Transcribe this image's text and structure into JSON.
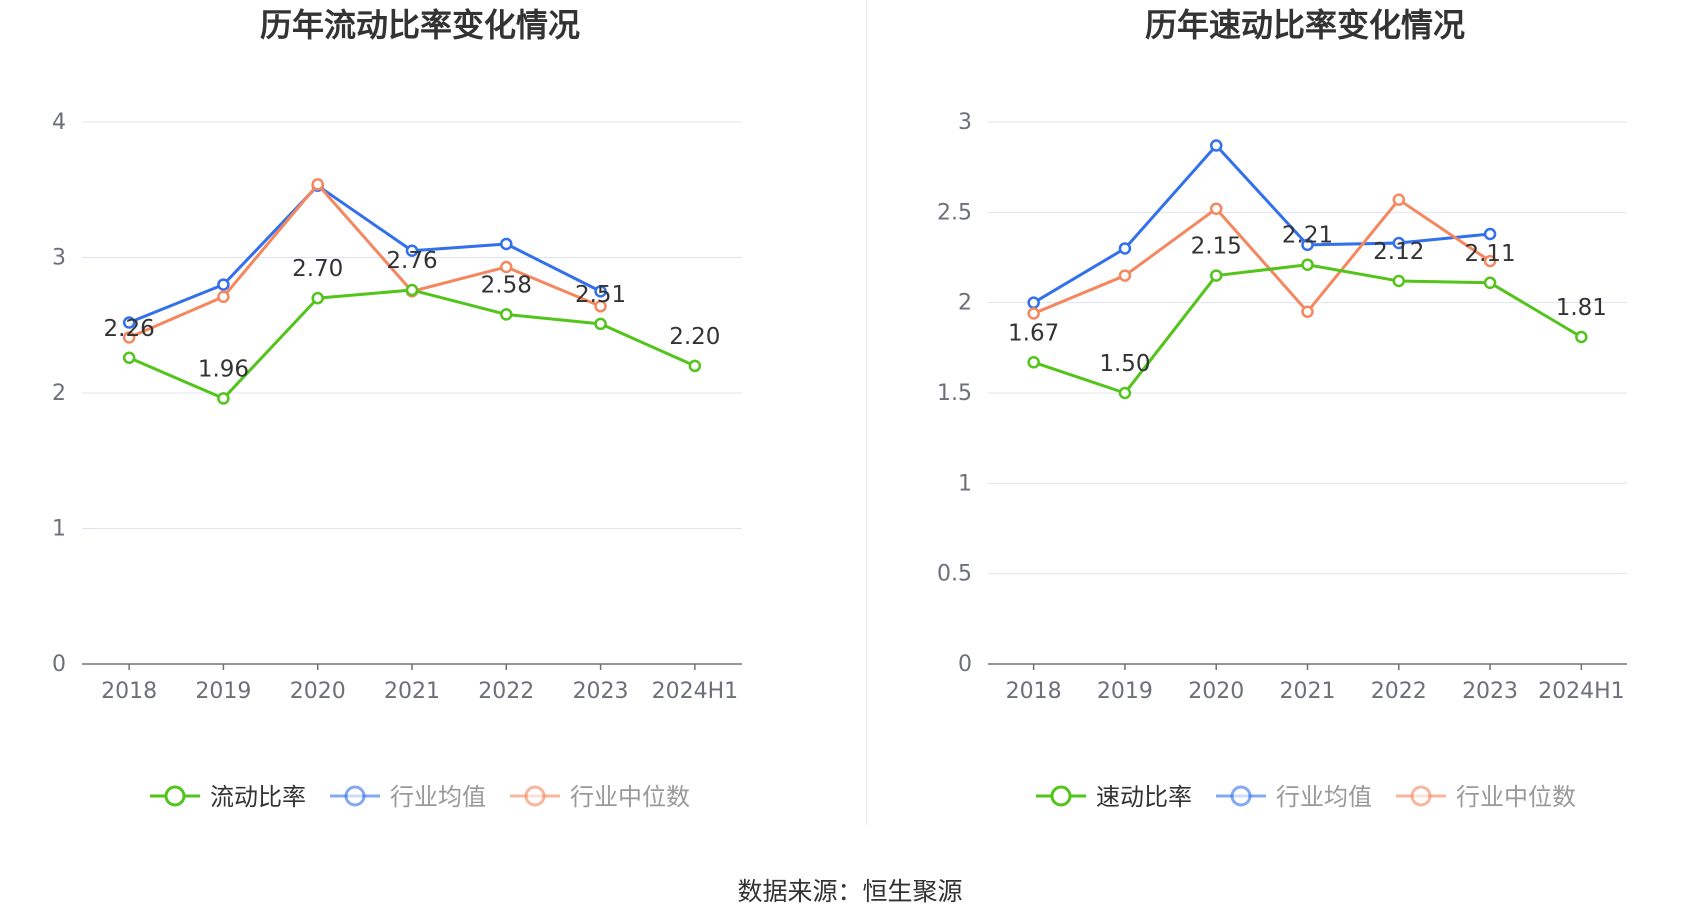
{
  "chart_data": [
    {
      "type": "line",
      "title": "历年流动比率变化情况",
      "categories": [
        "2018",
        "2019",
        "2020",
        "2021",
        "2022",
        "2023",
        "2024H1"
      ],
      "ylim": [
        0,
        4
      ],
      "yticks": [
        "0",
        "1",
        "2",
        "3",
        "4"
      ],
      "ytick_values": [
        0,
        1,
        2,
        3,
        4
      ],
      "grid": true,
      "legend_position": "bottom-center",
      "series": [
        {
          "name": "流动比率",
          "color": "#52c41a",
          "values": [
            2.26,
            1.96,
            2.7,
            2.76,
            2.58,
            2.51,
            2.2
          ],
          "labels": [
            "2.26",
            "1.96",
            "2.70",
            "2.76",
            "2.58",
            "2.51",
            "2.20"
          ]
        },
        {
          "name": "行业均值",
          "color": "#3370eb",
          "values": [
            2.52,
            2.8,
            3.53,
            3.05,
            3.1,
            2.75,
            null
          ]
        },
        {
          "name": "行业中位数",
          "color": "#f5875f",
          "values": [
            2.41,
            2.71,
            3.54,
            2.75,
            2.93,
            2.64,
            null
          ]
        }
      ]
    },
    {
      "type": "line",
      "title": "历年速动比率变化情况",
      "categories": [
        "2018",
        "2019",
        "2020",
        "2021",
        "2022",
        "2023",
        "2024H1"
      ],
      "ylim": [
        0,
        3
      ],
      "yticks": [
        "0",
        "0.5",
        "1",
        "1.5",
        "2",
        "2.5",
        "3"
      ],
      "ytick_values": [
        0,
        0.5,
        1,
        1.5,
        2,
        2.5,
        3
      ],
      "grid": true,
      "legend_position": "bottom-center",
      "series": [
        {
          "name": "速动比率",
          "color": "#52c41a",
          "values": [
            1.67,
            1.5,
            2.15,
            2.21,
            2.12,
            2.11,
            1.81
          ],
          "labels": [
            "1.67",
            "1.50",
            "2.15",
            "2.21",
            "2.12",
            "2.11",
            "1.81"
          ]
        },
        {
          "name": "行业均值",
          "color": "#3370eb",
          "values": [
            2.0,
            2.3,
            2.87,
            2.32,
            2.33,
            2.38,
            null
          ]
        },
        {
          "name": "行业中位数",
          "color": "#f5875f",
          "values": [
            1.94,
            2.15,
            2.52,
            1.95,
            2.57,
            2.23,
            null
          ]
        }
      ]
    }
  ],
  "footer": {
    "source": "数据来源：恒生聚源"
  }
}
